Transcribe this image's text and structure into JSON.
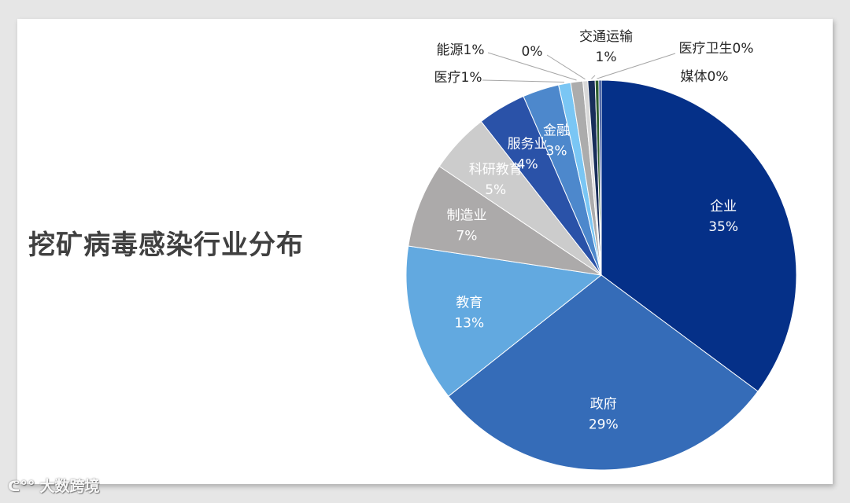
{
  "chart_data": {
    "type": "pie",
    "title": "挖矿病毒感染行业分布",
    "slices": [
      {
        "label": "企业",
        "value_label": "35%",
        "value": 35,
        "color": "#053088",
        "label_inside": true
      },
      {
        "label": "政府",
        "value_label": "29%",
        "value": 29,
        "color": "#356cb8",
        "label_inside": true
      },
      {
        "label": "教育",
        "value_label": "13%",
        "value": 13,
        "color": "#62a9e0",
        "label_inside": true
      },
      {
        "label": "制造业",
        "value_label": "7%",
        "value": 7,
        "color": "#acaaaa",
        "label_inside": true
      },
      {
        "label": "科研教育",
        "value_label": "5%",
        "value": 5,
        "color": "#cccccc",
        "label_inside": true
      },
      {
        "label": "服务业",
        "value_label": "4%",
        "value": 4,
        "color": "#2a52a8",
        "label_inside": true
      },
      {
        "label": "金融",
        "value_label": "3%",
        "value": 3,
        "color": "#4d88cc",
        "label_inside": true
      },
      {
        "label": "医疗",
        "value_label": "1%",
        "value": 1,
        "color": "#7ac6f4",
        "label_inside": false
      },
      {
        "label": "能源",
        "value_label": "1%",
        "value": 1,
        "color": "#acacac",
        "label_inside": false
      },
      {
        "label": "",
        "value_label": "0%",
        "value": 0.4,
        "color": "#d8d8d8",
        "label_inside": false
      },
      {
        "label": "交通运输",
        "value_label": "1%",
        "value": 0.6,
        "color": "#182e5a",
        "label_inside": false
      },
      {
        "label": "医疗卫生",
        "value_label": "0%",
        "value": 0.3,
        "color": "#2e5e2e",
        "label_inside": false
      },
      {
        "label": "媒体",
        "value_label": "0%",
        "value": 0.2,
        "color": "#1b3a8c",
        "label_inside": false
      }
    ]
  },
  "watermark": {
    "icon": "weibo-icon",
    "text": "大数跨境"
  }
}
